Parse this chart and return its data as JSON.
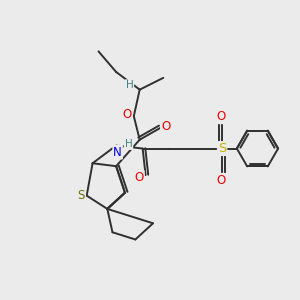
{
  "background_color": "#ebebeb",
  "figsize": [
    3.0,
    3.0
  ],
  "dpi": 100,
  "atom_colors": {
    "C": "#303030",
    "H": "#408080",
    "O": "#ee0000",
    "N": "#0000ee",
    "S_thio": "#707000",
    "S_sulfonyl": "#c8b000"
  },
  "bond_color": "#303030",
  "bond_width": 1.4,
  "font_size_atom": 8.5,
  "font_size_h": 7.5
}
